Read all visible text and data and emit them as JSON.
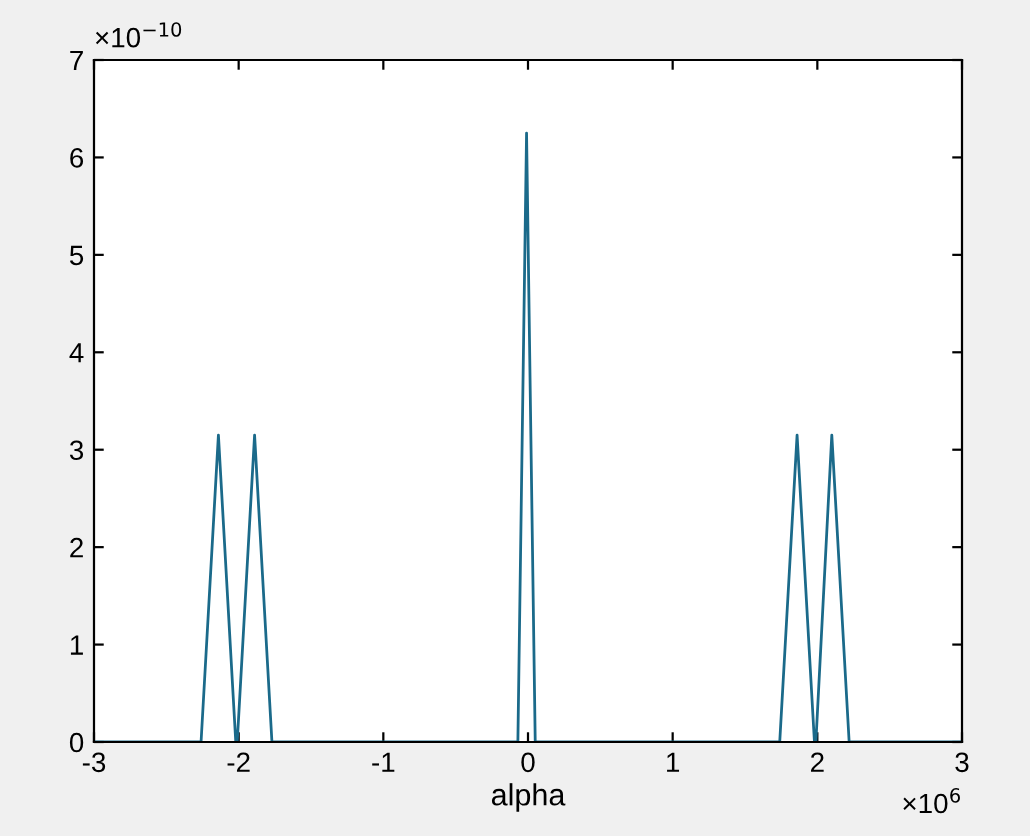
{
  "chart_data": {
    "type": "line",
    "xlabel": "alpha",
    "x": [
      -3,
      -2.26,
      -2.14,
      -2.02,
      -2.01,
      -1.89,
      -1.77,
      -0.07,
      -0.01,
      0.05,
      1.74,
      1.86,
      1.98,
      1.99,
      2.1,
      2.22,
      3
    ],
    "series": [
      {
        "color": "#1b6a8a",
        "values": [
          0,
          0,
          3.15,
          0,
          0,
          3.15,
          0,
          0,
          6.25,
          0,
          0,
          3.15,
          0,
          0,
          3.15,
          0,
          0
        ]
      }
    ],
    "xlim": [
      -3,
      3
    ],
    "xticks": [
      -3,
      -2,
      -1,
      0,
      1,
      2,
      3
    ],
    "ylim": [
      0,
      7
    ],
    "yticks": [
      0,
      1,
      2,
      3,
      4,
      5,
      6,
      7
    ],
    "annotations": [
      "×10$^{6}$",
      "×10$^{−10}$"
    ],
    "grid": false,
    "legend": false,
    "marker": "none",
    "line_style": "solid"
  }
}
